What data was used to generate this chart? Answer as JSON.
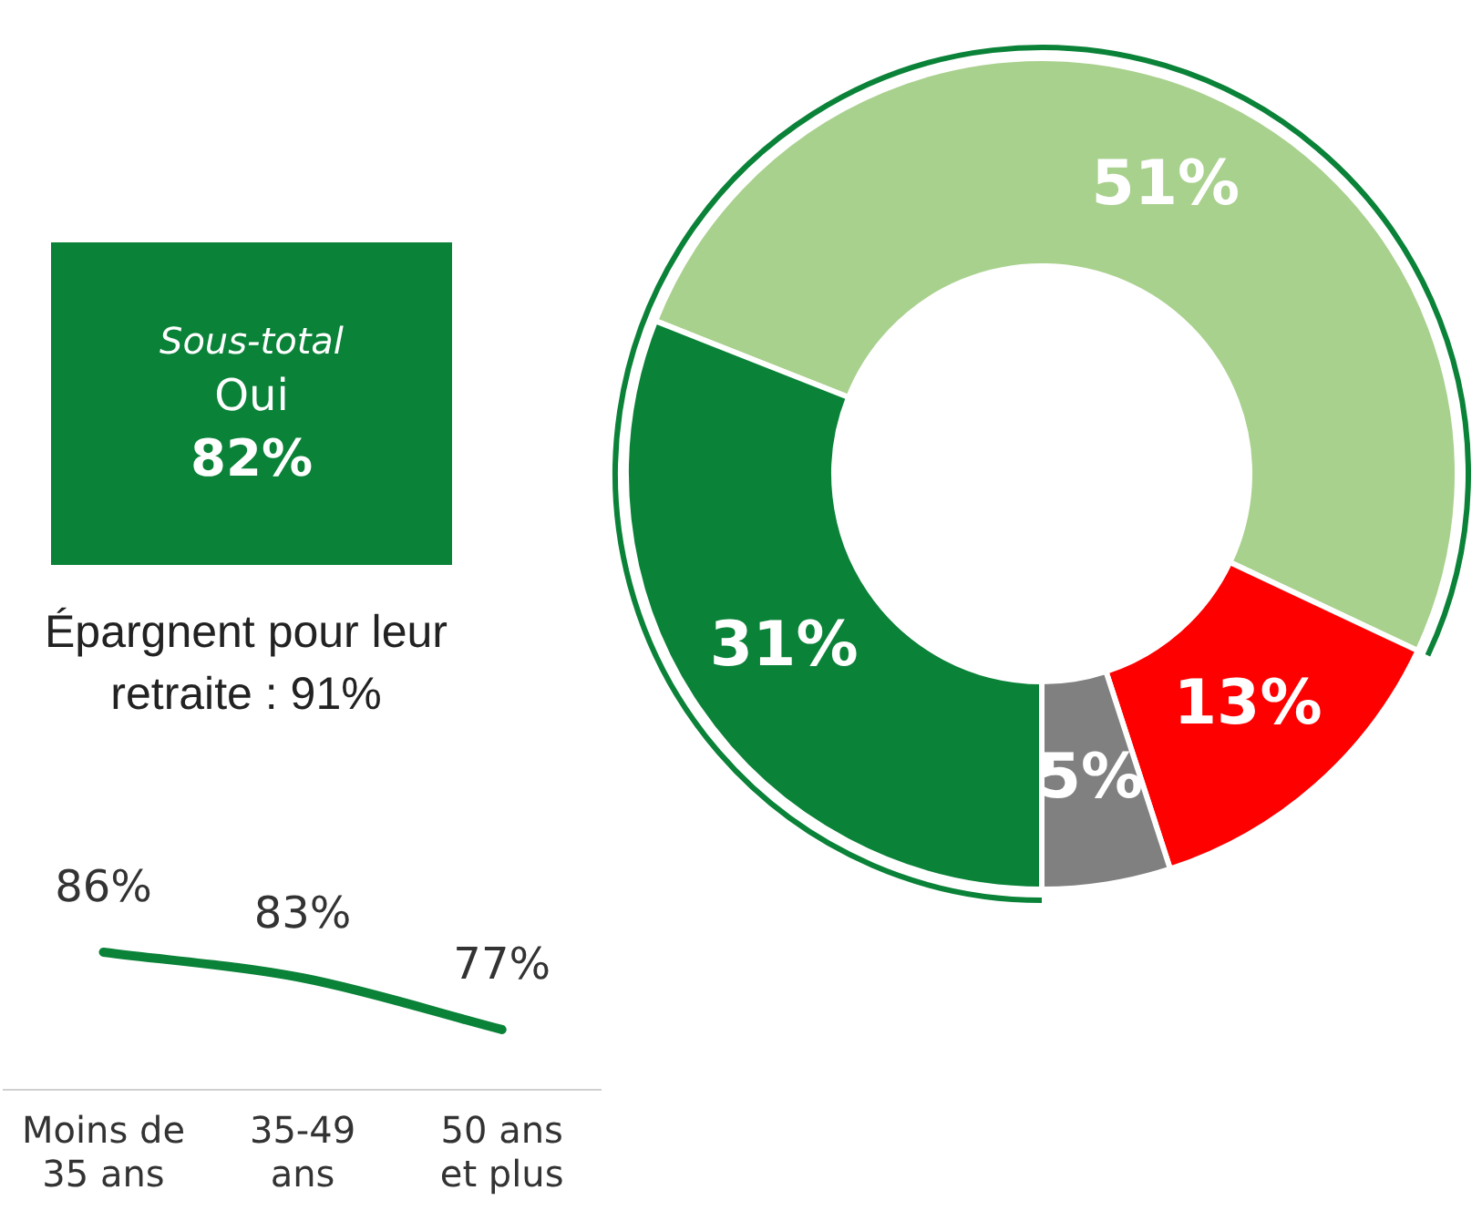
{
  "chart_data": [
    {
      "type": "other",
      "title": "Sous-total",
      "annotations": [
        "Oui",
        "82%"
      ],
      "color": "#0a8238"
    },
    {
      "type": "line",
      "title": "Épargnent pour leur retraite : 91%",
      "categories": [
        "Moins de 35 ans",
        "35-49 ans",
        "50 ans et plus"
      ],
      "values": [
        86,
        83,
        77
      ],
      "value_labels": [
        "86%",
        "83%",
        "77%"
      ],
      "color": "#0a8238",
      "grid": false,
      "legend": false,
      "marker": "none",
      "tick_labels": "x"
    },
    {
      "type": "donut",
      "categories": [
        null,
        null,
        null,
        null
      ],
      "values": [
        51,
        13,
        5,
        31
      ],
      "value_labels": [
        "51%",
        "13%",
        "5%",
        "31%"
      ],
      "colors": [
        "#a9d18e",
        "#ff0000",
        "#808080",
        "#0a8238"
      ],
      "legend": false
    }
  ]
}
